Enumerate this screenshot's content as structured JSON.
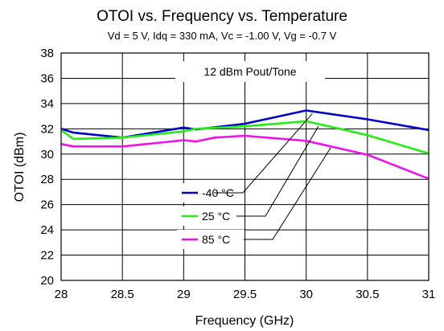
{
  "chart_data": {
    "type": "line",
    "title": "OTOI vs. Frequency vs. Temperature",
    "subtitle": "Vd = 5 V, Idq = 330 mA, Vc = -1.00 V, Vg = -0.7 V",
    "xlabel": "Frequency (GHz)",
    "ylabel": "OTOI (dBm)",
    "xlim": [
      28,
      31
    ],
    "ylim": [
      20,
      38
    ],
    "x_ticks": [
      "28",
      "28.5",
      "29",
      "29.5",
      "30",
      "30.5",
      "31"
    ],
    "y_ticks": [
      "20",
      "22",
      "24",
      "26",
      "28",
      "30",
      "32",
      "34",
      "36",
      "38"
    ],
    "grid": true,
    "annotation": "12 dBm Pout/Tone",
    "legend_position": "lower-left, with leader lines to each curve",
    "series": [
      {
        "name": "-40 °C",
        "color": "#0000cc",
        "points": [
          [
            28,
            32.0
          ],
          [
            28.1,
            31.7
          ],
          [
            28.5,
            31.3
          ],
          [
            29,
            32.1
          ],
          [
            29.1,
            31.95
          ],
          [
            29.5,
            32.4
          ],
          [
            30,
            33.45
          ],
          [
            30.5,
            32.75
          ],
          [
            31,
            31.9
          ]
        ]
      },
      {
        "name": "25 °C",
        "color": "#22ee11",
        "points": [
          [
            28,
            31.9
          ],
          [
            28.1,
            31.2
          ],
          [
            28.5,
            31.3
          ],
          [
            29,
            31.8
          ],
          [
            29.1,
            32.0
          ],
          [
            29.5,
            32.2
          ],
          [
            30,
            32.6
          ],
          [
            30.5,
            31.5
          ],
          [
            31,
            30.05
          ]
        ]
      },
      {
        "name": "85 °C",
        "color": "#ee11ee",
        "points": [
          [
            28,
            30.8
          ],
          [
            28.1,
            30.6
          ],
          [
            28.5,
            30.6
          ],
          [
            29,
            31.1
          ],
          [
            29.1,
            31.0
          ],
          [
            29.25,
            31.3
          ],
          [
            29.5,
            31.45
          ],
          [
            30,
            31.05
          ],
          [
            30.5,
            29.95
          ],
          [
            31,
            28.05
          ]
        ]
      }
    ],
    "leader_line_targets": [
      [
        30.05,
        33.2
      ],
      [
        30.1,
        32.2
      ],
      [
        30.2,
        30.5
      ]
    ]
  }
}
